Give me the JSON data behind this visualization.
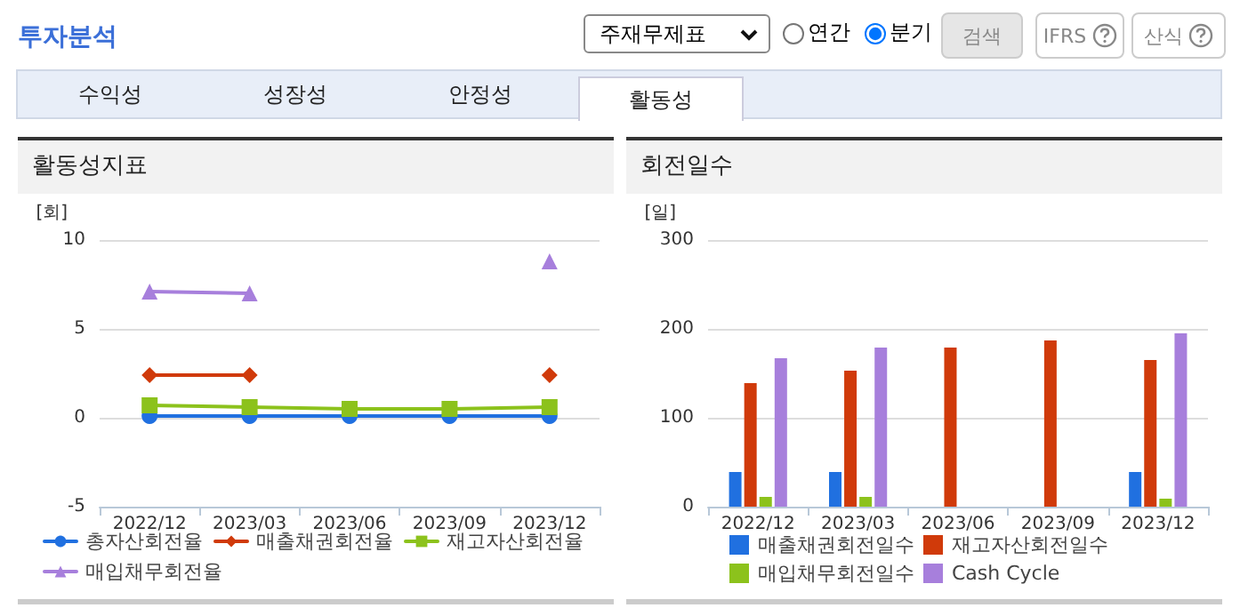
{
  "chart_data": [
    {
      "type": "other",
      "title": "투자분석",
      "annotations": [
        "주재무제표",
        "연간",
        "분기",
        "검색",
        "IFRS",
        "산식",
        "수익성",
        "성장성",
        "안정성",
        "활동성"
      ]
    },
    {
      "type": "line",
      "title": "활동성지표",
      "ylabel": "[회]",
      "categories": [
        "2022/12",
        "2023/03",
        "2023/06",
        "2023/09",
        "2023/12"
      ],
      "ylim": [
        -5,
        10
      ],
      "yticks": [
        -5,
        0,
        5,
        10
      ],
      "grid": "y",
      "legend": "bottom",
      "line_style": "solid",
      "series": [
        {
          "name": "총자산회전율",
          "color": "#2070e0",
          "marker": "circle",
          "values": [
            0.1,
            0.1,
            0.1,
            0.1,
            0.1
          ]
        },
        {
          "name": "매출채권회전율",
          "color": "#d03a0a",
          "marker": "diamond",
          "values": [
            2.4,
            2.4,
            null,
            null,
            2.4
          ]
        },
        {
          "name": "재고자산회전율",
          "color": "#8cc21c",
          "marker": "square",
          "values": [
            0.7,
            0.6,
            0.5,
            0.5,
            0.6
          ]
        },
        {
          "name": "매입채무회전율",
          "color": "#a77fdc",
          "marker": "triangle",
          "values": [
            7.1,
            7.0,
            null,
            null,
            8.8
          ]
        }
      ]
    },
    {
      "type": "bar",
      "title": "회전일수",
      "ylabel": "[일]",
      "categories": [
        "2022/12",
        "2023/03",
        "2023/06",
        "2023/09",
        "2023/12"
      ],
      "ylim": [
        0,
        300
      ],
      "yticks": [
        0,
        100,
        200,
        300
      ],
      "grid": "y",
      "legend": "bottom",
      "series": [
        {
          "name": "매출채권회전일수",
          "color": "#2070e0",
          "values": [
            39,
            39,
            null,
            null,
            39
          ]
        },
        {
          "name": "재고자산회전일수",
          "color": "#d03a0a",
          "values": [
            139,
            153,
            179,
            187,
            165
          ]
        },
        {
          "name": "매입채무회전일수",
          "color": "#8cc21c",
          "values": [
            11,
            11,
            null,
            null,
            9
          ]
        },
        {
          "name": "Cash Cycle",
          "color": "#a77fdc",
          "values": [
            167,
            179,
            null,
            null,
            195
          ]
        }
      ]
    }
  ]
}
